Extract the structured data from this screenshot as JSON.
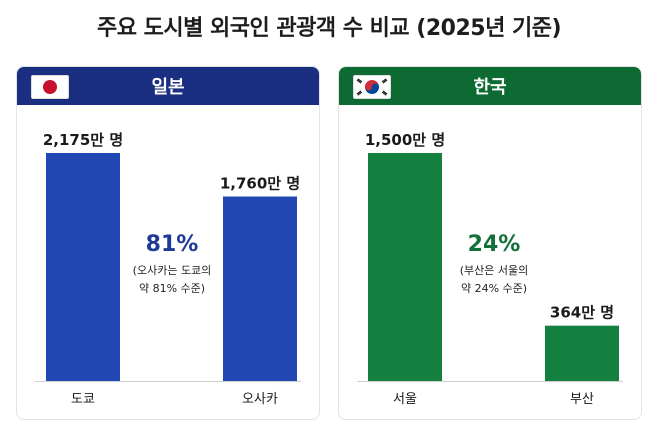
{
  "title": "주요 도시별 외국인 관광객 수 비교 (2025년 기준)",
  "colors": {
    "japan_header": "#1b2f82",
    "japan_bar": "#2147b3",
    "korea_header": "#0d6a32",
    "korea_bar": "#13803f",
    "japan_ratio_text": "#1d3a96",
    "korea_ratio_text": "#14703a"
  },
  "panels": [
    {
      "country": "일본",
      "flag": "japan-flag-icon",
      "ratio": "81%",
      "note_lines": [
        "(오사카는 도쿄의",
        "약 81% 수준)"
      ]
    },
    {
      "country": "한국",
      "flag": "korea-flag-icon",
      "ratio": "24%",
      "note_lines": [
        "(부산은 서울의",
        "약 24% 수준)"
      ]
    }
  ],
  "chart_data": [
    {
      "type": "bar",
      "title": "일본",
      "categories": [
        "도쿄",
        "오사카"
      ],
      "values": [
        2175,
        1760
      ],
      "value_labels": [
        "2,175만 명",
        "1,760만 명"
      ],
      "unit": "만 명",
      "ylim": [
        0,
        2175
      ]
    },
    {
      "type": "bar",
      "title": "한국",
      "categories": [
        "서울",
        "부산"
      ],
      "values": [
        1500,
        364
      ],
      "value_labels": [
        "1,500만 명",
        "364만 명"
      ],
      "unit": "만 명",
      "ylim": [
        0,
        1500
      ]
    }
  ]
}
